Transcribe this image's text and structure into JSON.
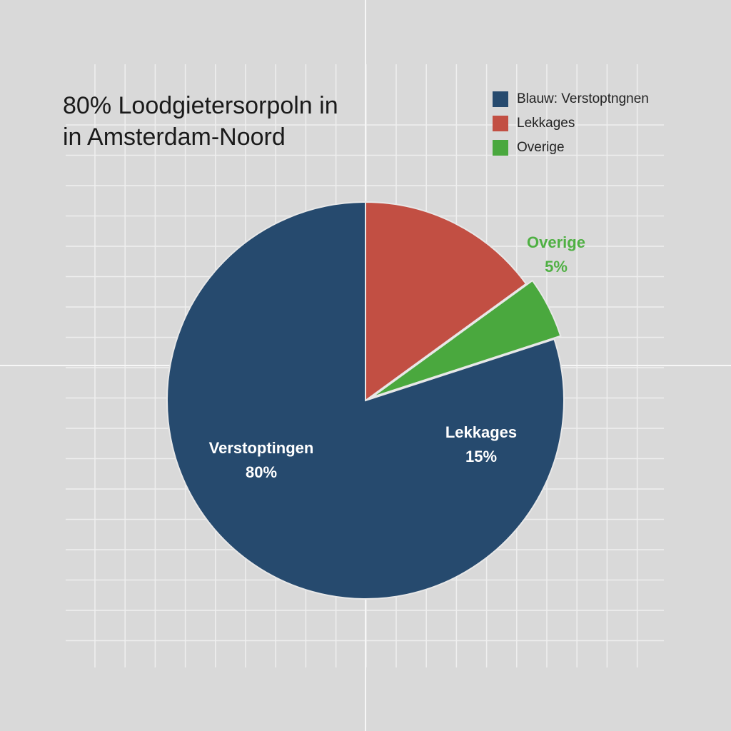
{
  "chart_data": {
    "type": "pie",
    "title_line1": "80% Loodgietersorpoln  in",
    "title_line2": "in Amsterdam-Noord",
    "legend": [
      {
        "label": "Blauw: Verstoptngnen",
        "color": "#264a6e"
      },
      {
        "label": "Lekkages",
        "color": "#c24f43"
      },
      {
        "label": "Overige",
        "color": "#4aa83e"
      }
    ],
    "slices": [
      {
        "name": "Lekkages",
        "value": 15,
        "label": "Lekkages",
        "value_label": "15%",
        "color": "#c24f43"
      },
      {
        "name": "Overige",
        "value": 5,
        "label": "Overige",
        "value_label": "5%",
        "color": "#4aa83e",
        "exploded": true
      },
      {
        "name": "Verstoptingen",
        "value": 80,
        "label": "Verstoptingen",
        "value_label": "80%",
        "color": "#264a6e"
      }
    ],
    "legend_position": "top-right",
    "grid": true
  }
}
